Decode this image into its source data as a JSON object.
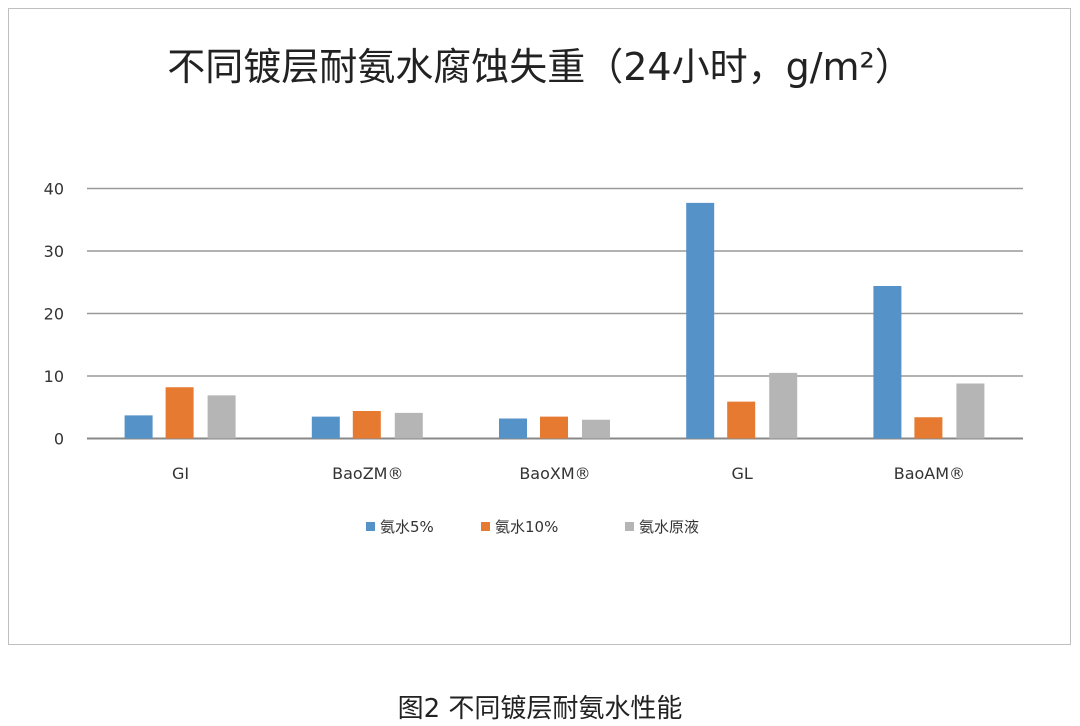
{
  "chart_data": {
    "type": "bar",
    "title": "不同镀层耐氨水腐蚀失重（24小时，g/m²）",
    "categories": [
      "GI",
      "BaoZM®",
      "BaoXM®",
      "GL",
      "BaoAM®"
    ],
    "series": [
      {
        "name": "氨水5%",
        "color": "#5592c8",
        "values": [
          3.7,
          3.5,
          3.2,
          37.7,
          24.4
        ]
      },
      {
        "name": "氨水10%",
        "color": "#e57a30",
        "values": [
          8.2,
          4.4,
          3.5,
          5.9,
          3.4
        ]
      },
      {
        "name": "氨水原液",
        "color": "#b5b5b5",
        "values": [
          6.9,
          4.1,
          3.0,
          10.5,
          8.8
        ]
      }
    ],
    "yticks": [
      0,
      10,
      20,
      30,
      40
    ],
    "ylim": [
      0,
      40
    ],
    "xlabel": "",
    "ylabel": "",
    "grid": true,
    "legend_position": "bottom"
  },
  "caption": "图2 不同镀层耐氨水性能"
}
